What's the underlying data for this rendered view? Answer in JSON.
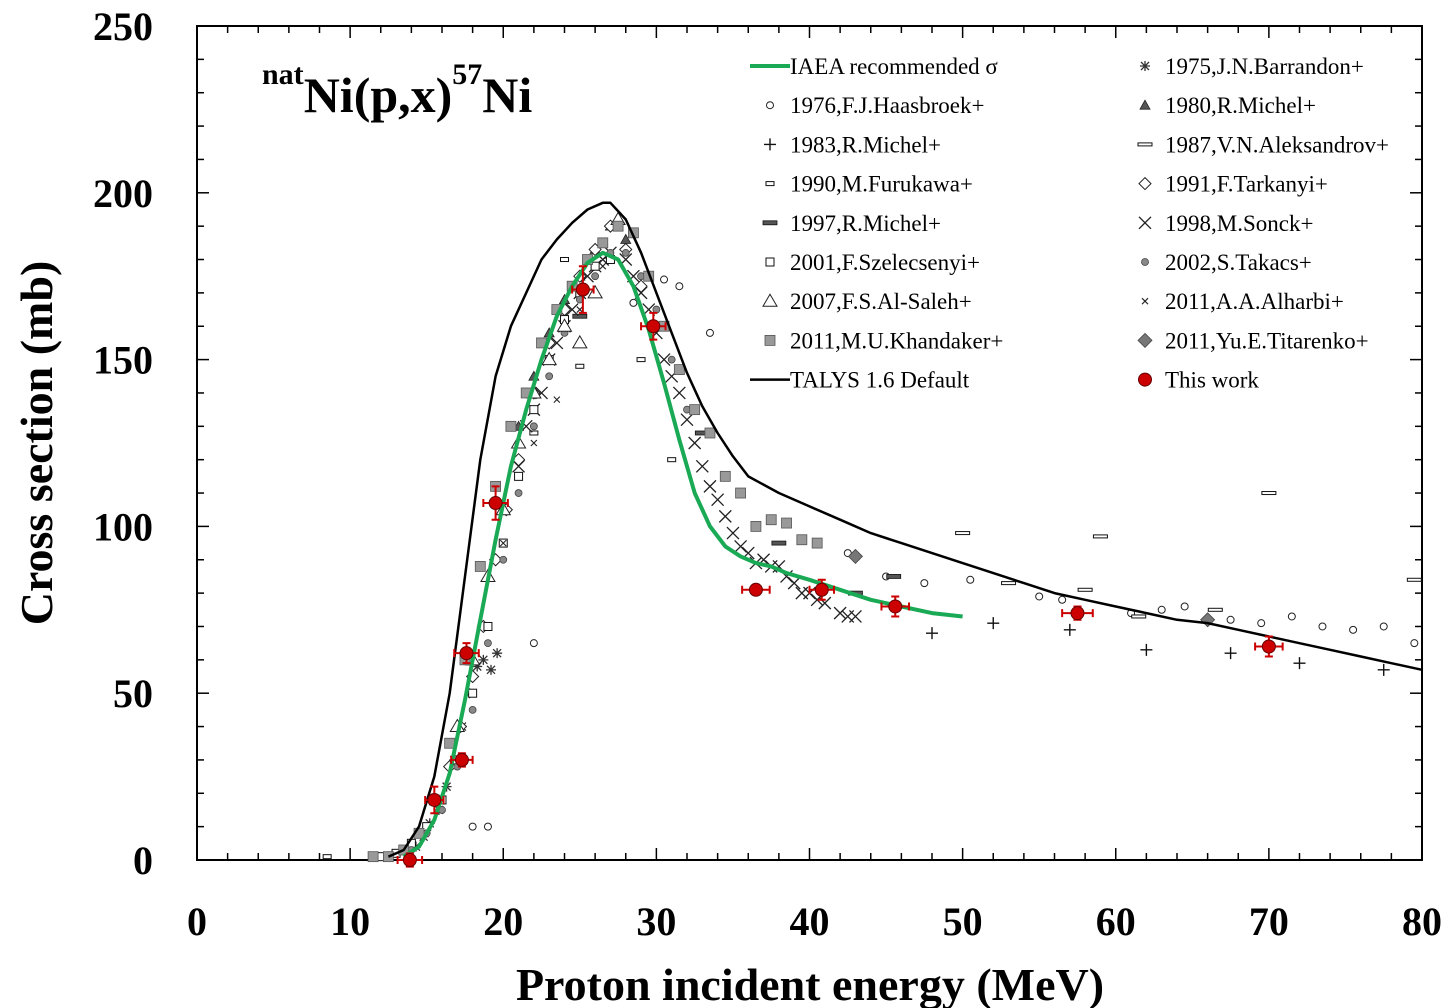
{
  "chart_data": {
    "type": "scatter",
    "title_parts": {
      "pre_sup": "nat",
      "main1": "Ni(p,x)",
      "mid_sup": "57",
      "main2": "Ni"
    },
    "xlabel": "Proton incident energy (MeV)",
    "ylabel": "Cross section (mb)",
    "xlim": [
      0,
      80
    ],
    "ylim": [
      0,
      250
    ],
    "x_ticks": [
      "0",
      "10",
      "20",
      "30",
      "40",
      "50",
      "60",
      "70",
      "80"
    ],
    "y_ticks": [
      "0",
      "50",
      "100",
      "150",
      "200",
      "250"
    ],
    "legend_position": "top-right",
    "series": [
      {
        "name": "IAEA recommended σ",
        "marker": "line",
        "color": "#1aaa55",
        "x": [
          13.5,
          14.5,
          15.5,
          16.5,
          17.5,
          18.5,
          19.5,
          20.5,
          21.5,
          22.5,
          23.5,
          24.5,
          25.5,
          26.5,
          27.5,
          28.5,
          29.5,
          30.5,
          31.5,
          32.5,
          33.5,
          34.5,
          35.5,
          36.5,
          37.5,
          38.5,
          40,
          42,
          44,
          46,
          48,
          50
        ],
        "y": [
          1,
          4,
          12,
          26,
          48,
          72,
          96,
          118,
          135,
          150,
          163,
          172,
          179,
          182,
          180,
          172,
          159,
          143,
          126,
          110,
          100,
          94,
          91,
          89,
          88,
          86,
          84,
          81,
          78,
          76,
          74,
          73
        ]
      },
      {
        "name": "1975,J.N.Barrandon+",
        "marker": "asterisk",
        "x": [
          13.8,
          14.3,
          14.8,
          15.2,
          15.8,
          16.3,
          16.8,
          17.3,
          17.8,
          18.3,
          18.7,
          19.2,
          19.6
        ],
        "y": [
          2,
          4,
          7,
          11,
          15,
          22,
          30,
          40,
          50,
          58,
          60,
          57,
          62
        ]
      },
      {
        "name": "1976,F.J.Haasbroek+",
        "marker": "open-circle",
        "x": [
          18,
          19,
          22,
          28.5,
          30.5,
          31.5,
          33.5,
          42.5,
          45,
          47.5,
          50.5,
          55,
          56.5,
          61,
          63,
          64.5,
          67.5,
          69.5,
          71.5,
          73.5,
          75.5,
          77.5,
          79.5
        ],
        "y": [
          10,
          10,
          65,
          167,
          174,
          172,
          158,
          92,
          85,
          83,
          84,
          79,
          78,
          74,
          75,
          76,
          72,
          71,
          73,
          70,
          69,
          70,
          65
        ]
      },
      {
        "name": "1980,R.Michel+",
        "marker": "filled-triangle",
        "x": [
          21,
          22,
          23,
          24,
          25,
          26,
          27,
          28
        ],
        "y": [
          130,
          145,
          158,
          168,
          175,
          183,
          190,
          186
        ]
      },
      {
        "name": "1983,R.Michel+",
        "marker": "plus",
        "x": [
          48,
          52,
          57,
          62,
          67.5,
          72,
          77.5
        ],
        "y": [
          68,
          71,
          69,
          63,
          62,
          59,
          57
        ]
      },
      {
        "name": "1987,V.N.Aleksandrov+",
        "marker": "dash",
        "x": [
          50,
          53,
          58,
          59,
          61.5,
          66.5,
          70,
          79.5
        ],
        "y": [
          98,
          83,
          81,
          97,
          73,
          75,
          110,
          84
        ]
      },
      {
        "name": "1990,M.Furukawa+",
        "marker": "small-rect",
        "x": [
          22,
          24,
          25,
          29,
          31,
          8.5
        ],
        "y": [
          128,
          180,
          148,
          150,
          120,
          1
        ]
      },
      {
        "name": "1991,F.Tarkanyi+",
        "marker": "open-diamond",
        "x": [
          16.5,
          17.2,
          18,
          18.7,
          19.5,
          20.2,
          21,
          22,
          23,
          24,
          25,
          26,
          27,
          28,
          29
        ],
        "y": [
          28,
          40,
          55,
          70,
          90,
          105,
          120,
          140,
          155,
          165,
          175,
          183,
          190,
          183,
          172
        ]
      },
      {
        "name": "1997,R.Michel+",
        "marker": "thick-dash",
        "x": [
          25,
          33,
          38,
          43,
          45.5
        ],
        "y": [
          163,
          128,
          95,
          80,
          85
        ]
      },
      {
        "name": "1998,M.Sonck+",
        "marker": "x-cross",
        "x": [
          21,
          21.5,
          22,
          22.5,
          23,
          23.5,
          24,
          24.5,
          25,
          25.5,
          26,
          26.5,
          27,
          28,
          28.5,
          29,
          29.5,
          30,
          30.5,
          31,
          31.5,
          32,
          32.5,
          33,
          33.5,
          34,
          34.5,
          35,
          35.5,
          36,
          36.5,
          37,
          37.5,
          38,
          38.5,
          39,
          39.5,
          40,
          40.5,
          41,
          42,
          42.5,
          43
        ],
        "y": [
          118,
          130,
          135,
          140,
          150,
          155,
          160,
          165,
          170,
          175,
          178,
          180,
          182,
          180,
          175,
          170,
          165,
          158,
          150,
          145,
          140,
          132,
          125,
          118,
          112,
          108,
          103,
          98,
          94,
          92,
          89,
          90,
          88,
          88,
          85,
          83,
          80,
          80,
          78,
          77,
          74,
          73,
          73
        ]
      },
      {
        "name": "2001,F.Szelecsenyi+",
        "marker": "open-square",
        "x": [
          12,
          13,
          14,
          15,
          16,
          17,
          18,
          19,
          20,
          21,
          22,
          23,
          24,
          25,
          26,
          27
        ],
        "y": [
          1,
          2,
          5,
          10,
          18,
          30,
          50,
          70,
          95,
          115,
          135,
          150,
          162,
          170,
          178,
          180
        ]
      },
      {
        "name": "2002,S.Takacs+",
        "marker": "filled-circle",
        "x": [
          14,
          15,
          16,
          17,
          18,
          19,
          20,
          21,
          22,
          23,
          24,
          25,
          26,
          27,
          28,
          29,
          30,
          31,
          32
        ],
        "y": [
          3,
          8,
          15,
          28,
          45,
          65,
          90,
          110,
          130,
          145,
          158,
          168,
          175,
          182,
          182,
          175,
          165,
          150,
          135
        ]
      },
      {
        "name": "2007,F.S.Al-Saleh+",
        "marker": "open-triangle",
        "x": [
          17,
          18,
          19,
          20,
          21,
          22,
          23,
          24,
          25,
          26,
          27.5
        ],
        "y": [
          40,
          60,
          85,
          105,
          125,
          140,
          150,
          160,
          155,
          170,
          192
        ]
      },
      {
        "name": "2011,A.A.Alharbi+",
        "marker": "small-x",
        "x": [
          20,
          22,
          23.5,
          25,
          26.5
        ],
        "y": [
          95,
          125,
          138,
          165,
          178
        ]
      },
      {
        "name": "2011,M.U.Khandaker+",
        "marker": "filled-square",
        "x": [
          11.5,
          12.5,
          13.5,
          14.5,
          15.5,
          16.5,
          17.5,
          18.5,
          19.5,
          20.5,
          21.5,
          22.5,
          23.5,
          24.5,
          25.5,
          26.5,
          27.5,
          28.5,
          29.5,
          30.5,
          31.5,
          32.5,
          33.5,
          34.5,
          35.5,
          36.5,
          37.5,
          38.5,
          39.5,
          40.5
        ],
        "y": [
          1,
          1,
          3,
          8,
          18,
          35,
          60,
          88,
          112,
          130,
          140,
          155,
          165,
          172,
          180,
          185,
          190,
          188,
          175,
          160,
          147,
          135,
          128,
          115,
          110,
          100,
          102,
          101,
          96,
          95
        ]
      },
      {
        "name": "2011,Yu.E.Titarenko+",
        "marker": "filled-diamond",
        "x": [
          43,
          66
        ],
        "y": [
          91,
          72
        ]
      },
      {
        "name": "TALYS 1.6 Default",
        "marker": "line",
        "color": "#000000",
        "x": [
          12.5,
          13.5,
          14.5,
          15.5,
          16.5,
          17.5,
          18.5,
          19.5,
          20.5,
          21.5,
          22.5,
          23.5,
          24.5,
          25.5,
          26.5,
          27,
          28,
          29,
          30,
          31,
          32,
          33,
          34,
          35,
          36,
          38,
          40,
          42,
          44,
          46,
          48,
          50,
          52,
          54,
          56,
          58,
          60,
          62,
          64,
          66,
          68,
          70,
          72,
          74,
          76,
          78,
          80
        ],
        "y": [
          1,
          3,
          10,
          25,
          50,
          85,
          120,
          145,
          160,
          170,
          180,
          186,
          191,
          195,
          197,
          197,
          192,
          182,
          170,
          158,
          146,
          136,
          128,
          121,
          115,
          110,
          106,
          102,
          98,
          95,
          92,
          89,
          86,
          83,
          80,
          78,
          76,
          74,
          72,
          71,
          69,
          67,
          65,
          63,
          61,
          59,
          57
        ]
      },
      {
        "name": "This work",
        "marker": "red-circle",
        "color": "#cc0000",
        "x": [
          13.9,
          15.5,
          17.3,
          17.6,
          19.5,
          25.2,
          29.8,
          36.5,
          40.8,
          45.6,
          57.5,
          70
        ],
        "y": [
          0,
          18,
          30,
          62,
          107,
          171,
          160,
          81,
          81,
          76,
          74,
          64
        ],
        "xerr": [
          0.8,
          0.6,
          0.7,
          0.8,
          0.8,
          0.7,
          0.8,
          0.9,
          0.8,
          0.9,
          1.0,
          0.9
        ],
        "yerr": [
          2,
          4,
          2,
          3,
          5,
          7,
          4,
          1,
          3,
          3,
          2,
          3
        ]
      }
    ]
  }
}
